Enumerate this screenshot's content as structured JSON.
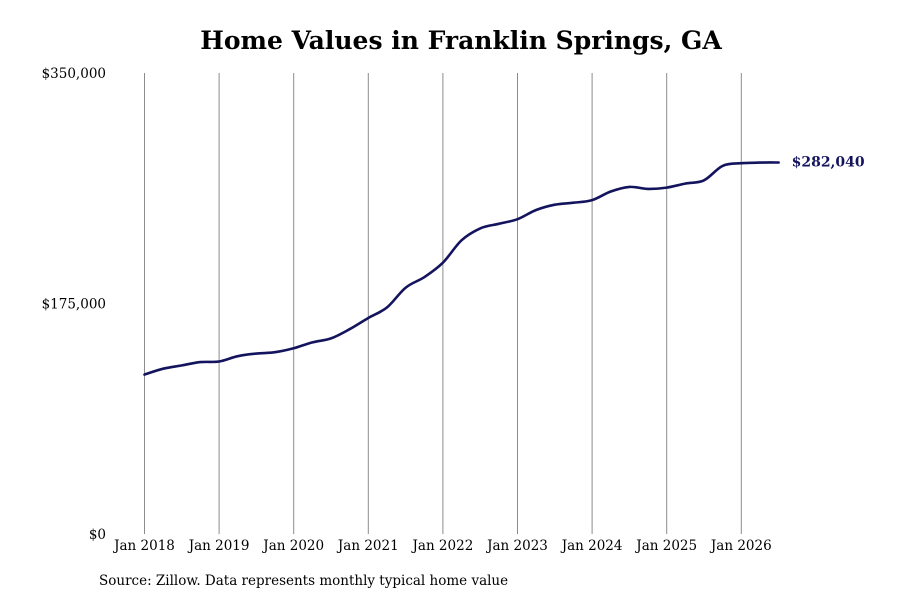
{
  "chart_data": {
    "type": "line",
    "title": "Home Values in Franklin Springs, GA",
    "xlabel": "",
    "ylabel": "",
    "x_ticks": [
      "Jan 2018",
      "Jan 2019",
      "Jan 2020",
      "Jan 2021",
      "Jan 2022",
      "Jan 2023",
      "Jan 2024",
      "Jan 2025",
      "Jan 2026"
    ],
    "y_ticks": [
      "$0",
      "$175,000",
      "$350,000"
    ],
    "ylim": [
      0,
      350000
    ],
    "xlim": [
      "2017-12",
      "2026-12"
    ],
    "grid": "vertical",
    "end_label": "$282,040",
    "line_color": "#14145e",
    "series": [
      {
        "values": [
          {
            "x": "2018-01",
            "y": 121000
          },
          {
            "x": "2018-04",
            "y": 125500
          },
          {
            "x": "2018-07",
            "y": 128000
          },
          {
            "x": "2018-10",
            "y": 130500
          },
          {
            "x": "2019-01",
            "y": 131000
          },
          {
            "x": "2019-04",
            "y": 135000
          },
          {
            "x": "2019-07",
            "y": 137000
          },
          {
            "x": "2019-10",
            "y": 138000
          },
          {
            "x": "2020-01",
            "y": 141000
          },
          {
            "x": "2020-04",
            "y": 145500
          },
          {
            "x": "2020-07",
            "y": 148500
          },
          {
            "x": "2020-10",
            "y": 155500
          },
          {
            "x": "2021-01",
            "y": 164000
          },
          {
            "x": "2021-04",
            "y": 172000
          },
          {
            "x": "2021-07",
            "y": 187000
          },
          {
            "x": "2021-10",
            "y": 195000
          },
          {
            "x": "2022-01",
            "y": 206000
          },
          {
            "x": "2022-04",
            "y": 223000
          },
          {
            "x": "2022-07",
            "y": 232000
          },
          {
            "x": "2022-10",
            "y": 235500
          },
          {
            "x": "2023-01",
            "y": 239000
          },
          {
            "x": "2023-04",
            "y": 246000
          },
          {
            "x": "2023-07",
            "y": 250000
          },
          {
            "x": "2023-10",
            "y": 251500
          },
          {
            "x": "2024-01",
            "y": 253500
          },
          {
            "x": "2024-04",
            "y": 260000
          },
          {
            "x": "2024-07",
            "y": 263500
          },
          {
            "x": "2024-10",
            "y": 262000
          },
          {
            "x": "2025-01",
            "y": 263000
          },
          {
            "x": "2025-04",
            "y": 266000
          },
          {
            "x": "2025-07",
            "y": 268500
          },
          {
            "x": "2025-10",
            "y": 279500
          },
          {
            "x": "2026-01",
            "y": 281500
          },
          {
            "x": "2026-04",
            "y": 282000
          },
          {
            "x": "2026-07",
            "y": 282040
          }
        ]
      }
    ]
  },
  "footer": {
    "source": "Source: Zillow. Data represents monthly typical home value"
  }
}
